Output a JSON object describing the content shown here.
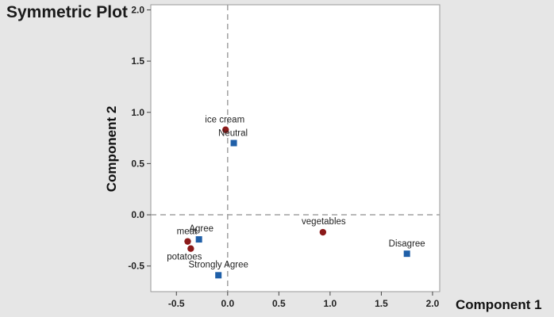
{
  "chart_data": {
    "type": "scatter",
    "title": "Symmetric Plot",
    "xlabel": "Component 1",
    "ylabel": "Component 2",
    "xlim": [
      -0.75,
      2.07
    ],
    "ylim": [
      -0.75,
      2.05
    ],
    "x_ticks": [
      -0.5,
      0.0,
      0.5,
      1.0,
      1.5,
      2.0
    ],
    "x_tick_labels": [
      "-0.5",
      "0.0",
      "0.5",
      "1.0",
      "1.5",
      "2.0"
    ],
    "y_ticks": [
      -0.5,
      0.0,
      0.5,
      1.0,
      1.5,
      2.0
    ],
    "y_tick_labels": [
      "-0.5",
      "0.0",
      "0.5",
      "1.0",
      "1.5",
      "2.0"
    ],
    "reference_lines": {
      "x": 0,
      "y": 0,
      "style": "dashed"
    },
    "grid": false,
    "series": [
      {
        "marker": "circle",
        "color": "#8b1a1a",
        "points": [
          {
            "label": "ice cream",
            "x": -0.02,
            "y": 0.83
          },
          {
            "label": "meat",
            "x": -0.39,
            "y": -0.26
          },
          {
            "label": "potatoes",
            "x": -0.36,
            "y": -0.33
          },
          {
            "label": "vegetables",
            "x": 0.93,
            "y": -0.17
          }
        ]
      },
      {
        "marker": "square",
        "color": "#1f5fa8",
        "points": [
          {
            "label": "Neutral",
            "x": 0.06,
            "y": 0.7
          },
          {
            "label": "Agree",
            "x": -0.28,
            "y": -0.24
          },
          {
            "label": "Strongly Agree",
            "x": -0.09,
            "y": -0.59
          },
          {
            "label": "Disagree",
            "x": 1.75,
            "y": -0.38
          }
        ]
      }
    ]
  }
}
